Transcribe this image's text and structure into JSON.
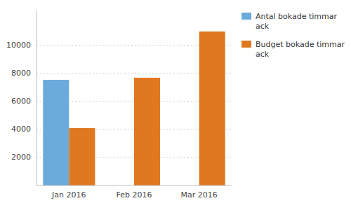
{
  "chart_data": {
    "type": "bar",
    "categories": [
      "Jan 2016",
      "Feb 2016",
      "Mar 2016"
    ],
    "series": [
      {
        "name": "Antal bokade timmar\nack",
        "color": "#6aabdc",
        "values": [
          7550,
          0,
          0
        ]
      },
      {
        "name": "Budget bokade timmar\nack",
        "color": "#e07820",
        "values": [
          4100,
          7700,
          11000
        ]
      }
    ],
    "ylim": [
      0,
      12500
    ],
    "yticks": [
      2000,
      4000,
      6000,
      8000,
      10000
    ],
    "grid": true,
    "legend": "right"
  }
}
